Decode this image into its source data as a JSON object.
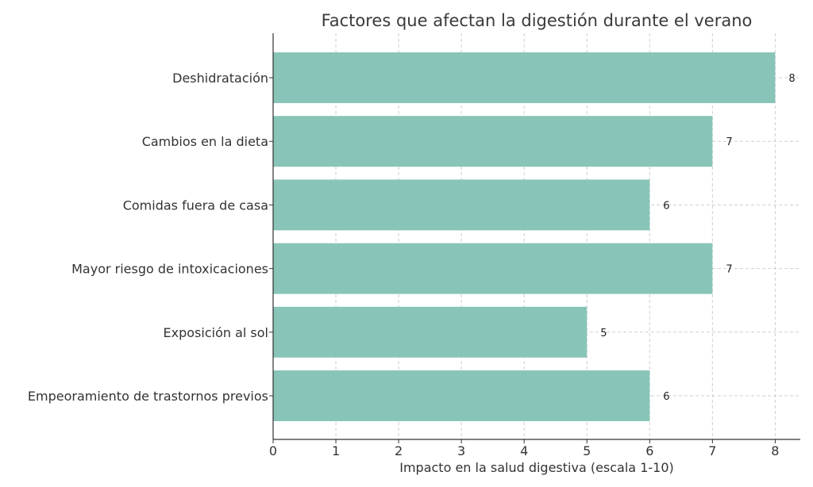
{
  "chart_data": {
    "type": "bar",
    "orientation": "horizontal",
    "title": "Factores que afectan la digestión durante el verano",
    "xlabel": "Impacto en la salud digestiva (escala 1-10)",
    "ylabel": "",
    "xlim": [
      0,
      8.4
    ],
    "xticks": [
      "0",
      "1",
      "2",
      "3",
      "4",
      "5",
      "6",
      "7",
      "8"
    ],
    "categories": [
      "Deshidratación",
      "Cambios en la dieta",
      "Comidas fuera de casa",
      "Mayor riesgo de intoxicaciones",
      "Exposición al sol",
      "Empeoramiento de trastornos previos"
    ],
    "values": [
      8,
      7,
      6,
      7,
      5,
      6
    ],
    "data_labels": [
      "8",
      "7",
      "6",
      "7",
      "5",
      "6"
    ],
    "grid": true,
    "bar_color": "#88c5b8"
  }
}
